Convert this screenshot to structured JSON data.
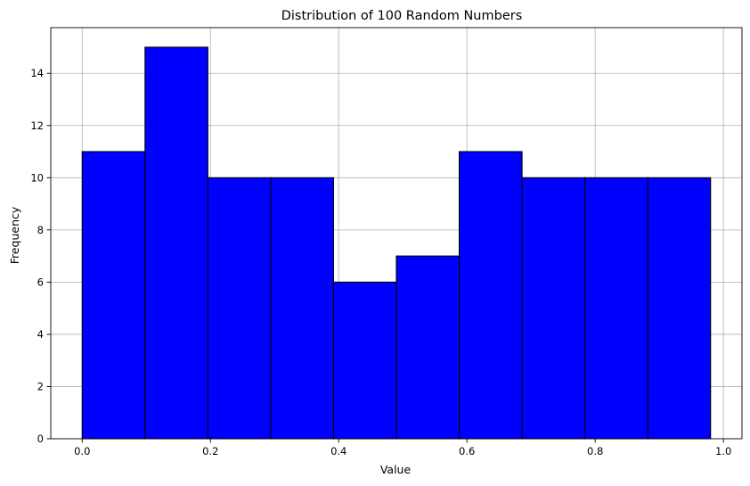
{
  "chart_data": {
    "type": "bar",
    "title": "Distribution of 100 Random Numbers",
    "xlabel": "Value",
    "ylabel": "Frequency",
    "bins": [
      {
        "start": 0.0,
        "end": 0.098
      },
      {
        "start": 0.098,
        "end": 0.196
      },
      {
        "start": 0.196,
        "end": 0.294
      },
      {
        "start": 0.294,
        "end": 0.392
      },
      {
        "start": 0.392,
        "end": 0.49
      },
      {
        "start": 0.49,
        "end": 0.588
      },
      {
        "start": 0.588,
        "end": 0.686
      },
      {
        "start": 0.686,
        "end": 0.784
      },
      {
        "start": 0.784,
        "end": 0.882
      },
      {
        "start": 0.882,
        "end": 0.98
      }
    ],
    "values": [
      11,
      15,
      10,
      10,
      6,
      7,
      11,
      10,
      10,
      10
    ],
    "xlim": [
      -0.049,
      1.029
    ],
    "ylim": [
      0,
      15.75
    ],
    "xticks": [
      0.0,
      0.2,
      0.4,
      0.6,
      0.8,
      1.0
    ],
    "xtick_labels": [
      "0.0",
      "0.2",
      "0.4",
      "0.6",
      "0.8",
      "1.0"
    ],
    "yticks": [
      0,
      2,
      4,
      6,
      8,
      10,
      12,
      14
    ],
    "ytick_labels": [
      "0",
      "2",
      "4",
      "6",
      "8",
      "10",
      "12",
      "14"
    ],
    "grid": true,
    "colors": {
      "bar_fill": "#0000ff",
      "bar_edge": "#000000",
      "grid": "#b0b0b0",
      "axes": "#000000"
    }
  }
}
